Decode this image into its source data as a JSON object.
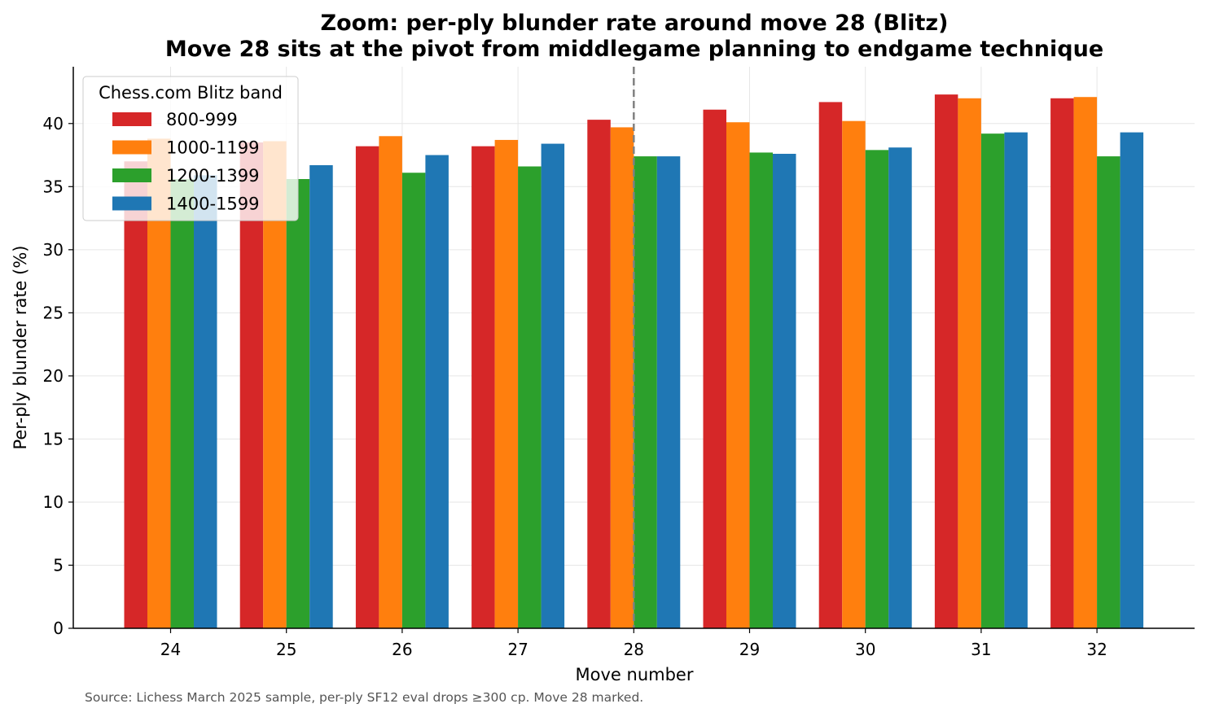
{
  "chart_data": {
    "type": "bar",
    "title": "Zoom: per-ply blunder rate around move 28 (Blitz)",
    "subtitle": "Move 28 sits at the pivot from middlegame planning to endgame technique",
    "xlabel": "Move number",
    "ylabel": "Per-ply blunder rate (%)",
    "categories": [
      "24",
      "25",
      "26",
      "27",
      "28",
      "29",
      "30",
      "31",
      "32"
    ],
    "ylim": [
      0,
      44.5
    ],
    "yticks": [
      0,
      5,
      10,
      15,
      20,
      25,
      30,
      35,
      40
    ],
    "grid": true,
    "legend": {
      "title": "Chess.com Blitz band",
      "placement": "top-left"
    },
    "series": [
      {
        "name": "800-999",
        "color": "#d62728",
        "values": [
          37.0,
          38.5,
          38.2,
          38.2,
          40.3,
          41.1,
          41.7,
          42.3,
          42.0
        ]
      },
      {
        "name": "1000-1199",
        "color": "#ff7f0e",
        "values": [
          38.8,
          38.6,
          39.0,
          38.7,
          39.7,
          40.1,
          40.2,
          42.0,
          42.1
        ]
      },
      {
        "name": "1200-1399",
        "color": "#2ca02c",
        "values": [
          35.6,
          35.6,
          36.1,
          36.6,
          37.4,
          37.7,
          37.9,
          39.2,
          37.4
        ]
      },
      {
        "name": "1400-1599",
        "color": "#1f77b4",
        "values": [
          35.9,
          36.7,
          37.5,
          38.4,
          37.4,
          37.6,
          38.1,
          39.3,
          39.3
        ]
      }
    ],
    "marker": {
      "category": "28",
      "style": "dashed",
      "color": "#808080"
    },
    "source": "Source: Lichess March 2025 sample, per-ply SF12 eval drops ≥300 cp. Move 28 marked."
  }
}
